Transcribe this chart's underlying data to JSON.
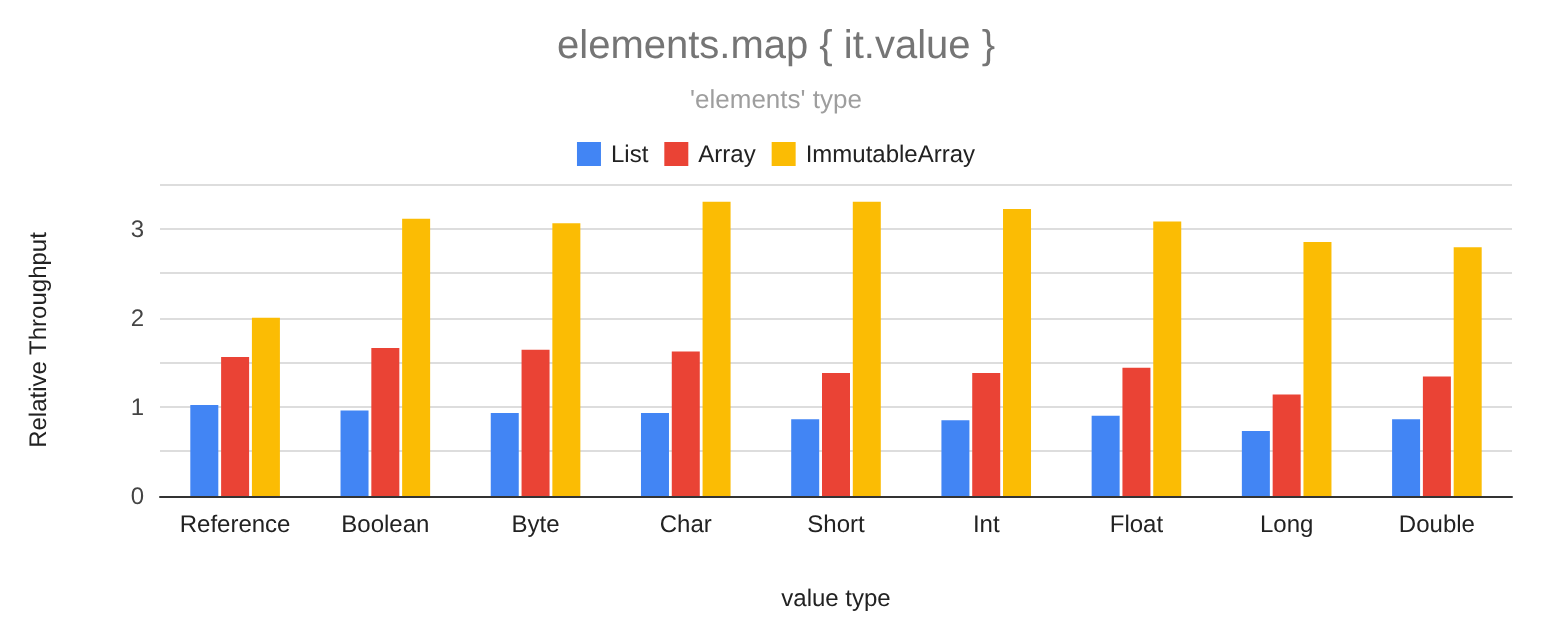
{
  "chart_data": {
    "type": "bar",
    "title": "elements.map { it.value }",
    "subtitle": "'elements' type",
    "xlabel": "value type",
    "ylabel": "Relative Throughput",
    "categories": [
      "Reference",
      "Boolean",
      "Byte",
      "Char",
      "Short",
      "Int",
      "Float",
      "Long",
      "Double"
    ],
    "series": [
      {
        "name": "List",
        "color": "#4285f4",
        "values": [
          1.02,
          0.96,
          0.93,
          0.93,
          0.86,
          0.85,
          0.9,
          0.73,
          0.86
        ]
      },
      {
        "name": "Array",
        "color": "#ea4335",
        "values": [
          1.56,
          1.66,
          1.64,
          1.62,
          1.38,
          1.38,
          1.44,
          1.14,
          1.34
        ]
      },
      {
        "name": "ImmutableArray",
        "color": "#fbbc04",
        "values": [
          2.0,
          3.11,
          3.06,
          3.3,
          3.3,
          3.22,
          3.08,
          2.85,
          2.79
        ]
      }
    ],
    "ylim": [
      0,
      3.5
    ],
    "yticks": [
      0,
      {
        "value": 0.5,
        "label": null
      },
      1,
      {
        "value": 1.5,
        "label": null
      },
      2,
      {
        "value": 2.5,
        "label": null
      },
      3,
      {
        "value": 3.5,
        "label": null
      }
    ],
    "grid": "y",
    "legend": "top"
  }
}
